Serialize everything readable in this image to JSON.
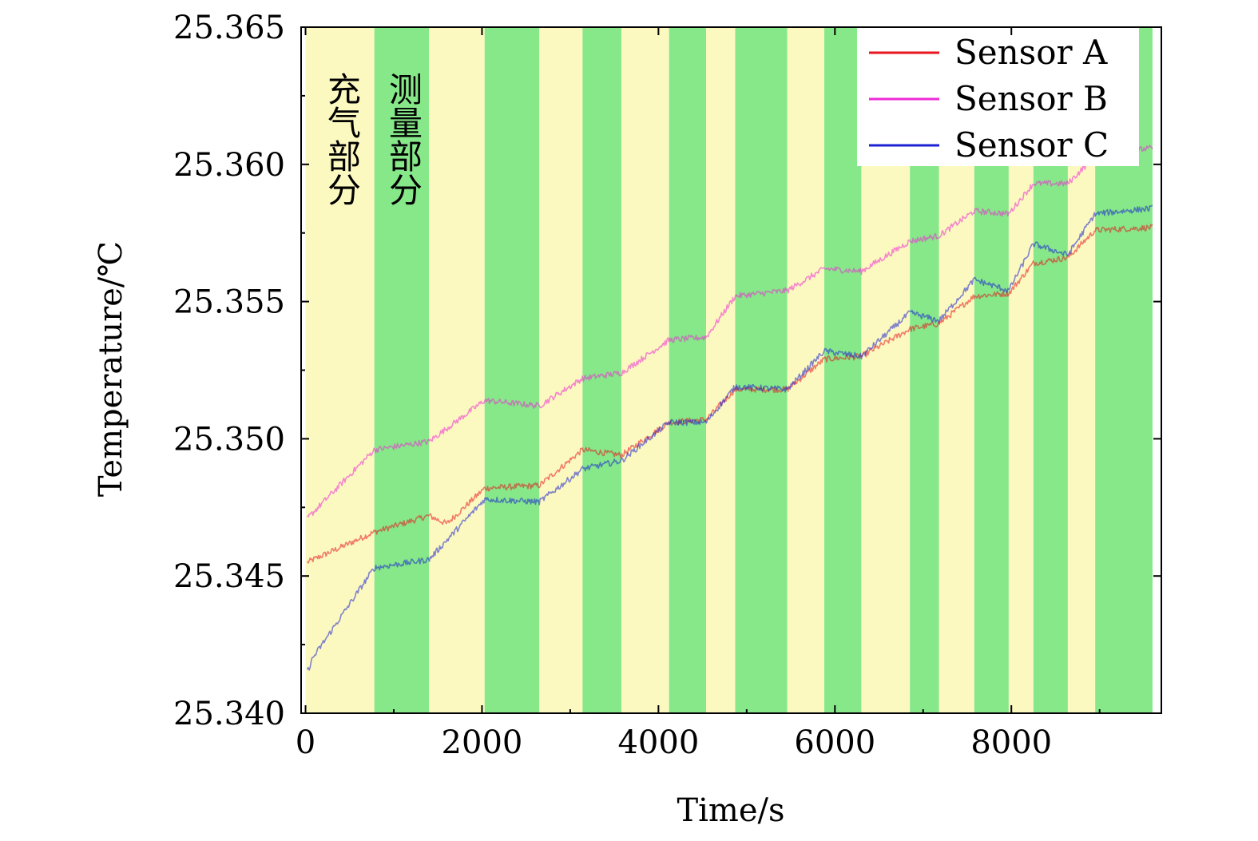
{
  "chart_data": {
    "type": "line",
    "xlabel": "Time/s",
    "ylabel": "Temperature/℃",
    "xlim": [
      -50,
      9700
    ],
    "ylim": [
      25.34,
      25.365
    ],
    "x_ticks": [
      0,
      2000,
      4000,
      6000,
      8000
    ],
    "x_tick_labels": [
      "0",
      "2000",
      "4000",
      "6000",
      "8000"
    ],
    "y_ticks": [
      25.34,
      25.345,
      25.35,
      25.355,
      25.36,
      25.365
    ],
    "y_tick_labels": [
      "25.340",
      "25.345",
      "25.350",
      "25.355",
      "25.360",
      "25.365"
    ],
    "legend_position": "top-right",
    "phase_labels": {
      "charging": "充气部分",
      "measurement": "测量部分"
    },
    "phase_colors": {
      "charging": "#fcf9c0",
      "measurement": "#86e889"
    },
    "phases": [
      {
        "type": "charging",
        "start": 0,
        "end": 780
      },
      {
        "type": "measurement",
        "start": 780,
        "end": 1400
      },
      {
        "type": "charging",
        "start": 1400,
        "end": 2030
      },
      {
        "type": "measurement",
        "start": 2030,
        "end": 2650
      },
      {
        "type": "charging",
        "start": 2650,
        "end": 3140
      },
      {
        "type": "measurement",
        "start": 3140,
        "end": 3580
      },
      {
        "type": "charging",
        "start": 3580,
        "end": 4120
      },
      {
        "type": "measurement",
        "start": 4120,
        "end": 4540
      },
      {
        "type": "charging",
        "start": 4540,
        "end": 4870
      },
      {
        "type": "measurement",
        "start": 4870,
        "end": 5460
      },
      {
        "type": "charging",
        "start": 5460,
        "end": 5880
      },
      {
        "type": "measurement",
        "start": 5880,
        "end": 6300
      },
      {
        "type": "charging",
        "start": 6300,
        "end": 6850
      },
      {
        "type": "measurement",
        "start": 6850,
        "end": 7180
      },
      {
        "type": "charging",
        "start": 7180,
        "end": 7580
      },
      {
        "type": "measurement",
        "start": 7580,
        "end": 7970
      },
      {
        "type": "charging",
        "start": 7970,
        "end": 8250
      },
      {
        "type": "measurement",
        "start": 8250,
        "end": 8640
      },
      {
        "type": "charging",
        "start": 8640,
        "end": 8950
      },
      {
        "type": "measurement",
        "start": 8950,
        "end": 9600
      }
    ],
    "series": [
      {
        "name": "Sensor A",
        "color": "#e8141e",
        "x": [
          20,
          780,
          1400,
          1600,
          2030,
          2650,
          3140,
          3580,
          4120,
          4540,
          4870,
          5460,
          5880,
          6300,
          6850,
          7180,
          7580,
          7970,
          8250,
          8640,
          8950,
          9600
        ],
        "y": [
          25.3455,
          25.3466,
          25.3472,
          25.3469,
          25.3482,
          25.3483,
          25.3496,
          25.3494,
          25.3506,
          25.3507,
          25.3518,
          25.3518,
          25.3529,
          25.353,
          25.354,
          25.3542,
          25.3552,
          25.3553,
          25.3564,
          25.3566,
          25.3576,
          25.3577
        ]
      },
      {
        "name": "Sensor B",
        "color": "#ee2ad6",
        "x": [
          20,
          780,
          1400,
          2030,
          2650,
          3140,
          3580,
          4120,
          4540,
          4870,
          5460,
          5880,
          6300,
          6850,
          7180,
          7580,
          7970,
          8250,
          8640,
          8950,
          9600
        ],
        "y": [
          25.3471,
          25.3496,
          25.3499,
          25.3514,
          25.3512,
          25.3522,
          25.3524,
          25.3536,
          25.3537,
          25.3552,
          25.3554,
          25.3562,
          25.3561,
          25.3572,
          25.3574,
          25.3583,
          25.3582,
          25.3593,
          25.3593,
          25.3603,
          25.3606
        ]
      },
      {
        "name": "Sensor C",
        "color": "#1b22d2",
        "x": [
          20,
          80,
          780,
          1400,
          2030,
          2650,
          3140,
          3580,
          4120,
          4540,
          4870,
          5460,
          5880,
          6300,
          6850,
          7180,
          7580,
          7970,
          8250,
          8640,
          8950,
          9600
        ],
        "y": [
          25.3415,
          25.342,
          25.3453,
          25.3456,
          25.3478,
          25.3477,
          25.3489,
          25.3492,
          25.3506,
          25.3506,
          25.3519,
          25.3518,
          25.3532,
          25.353,
          25.3546,
          25.3543,
          25.3558,
          25.3554,
          25.3571,
          25.3567,
          25.3582,
          25.3584
        ]
      }
    ]
  }
}
